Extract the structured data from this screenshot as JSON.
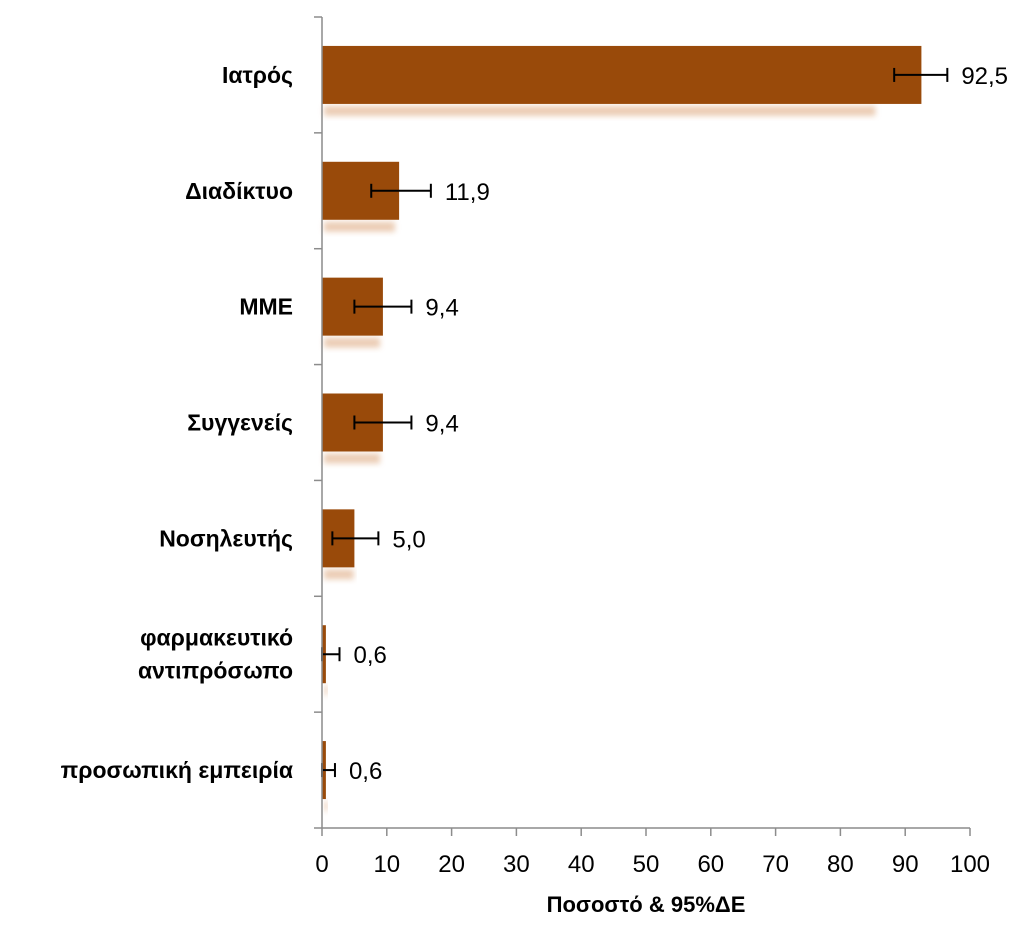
{
  "chart_data": {
    "type": "bar",
    "orientation": "horizontal",
    "categories": [
      [
        "Ιατρός"
      ],
      [
        "Διαδίκτυο"
      ],
      [
        "ΜΜΕ"
      ],
      [
        "Συγγενείς"
      ],
      [
        "Νοσηλευτής"
      ],
      [
        "φαρμακευτικό",
        "αντιπρόσωπο"
      ],
      [
        "προσωπική εμπειρία"
      ]
    ],
    "values": [
      92.5,
      11.9,
      9.4,
      9.4,
      5.0,
      0.6,
      0.6
    ],
    "value_labels": [
      "92,5",
      "11,9",
      "9,4",
      "9,4",
      "5,0",
      "0,6",
      "0,6"
    ],
    "error_bars": [
      {
        "low": 88.3,
        "high": 96.5
      },
      {
        "low": 7.6,
        "high": 16.8
      },
      {
        "low": 5.0,
        "high": 13.8
      },
      {
        "low": 5.0,
        "high": 13.8
      },
      {
        "low": 1.6,
        "high": 8.7
      },
      {
        "low": 0.0,
        "high": 2.7
      },
      {
        "low": 0.0,
        "high": 2.0
      }
    ],
    "xlabel": "Ποσοστό & 95%ΔΕ",
    "ylabel": "",
    "xlim": [
      0,
      100
    ],
    "xticks": [
      0,
      10,
      20,
      30,
      40,
      50,
      60,
      70,
      80,
      90,
      100
    ],
    "grid": false,
    "bar_color": "#994a0a",
    "shadow_color": "#e8c4a8"
  }
}
